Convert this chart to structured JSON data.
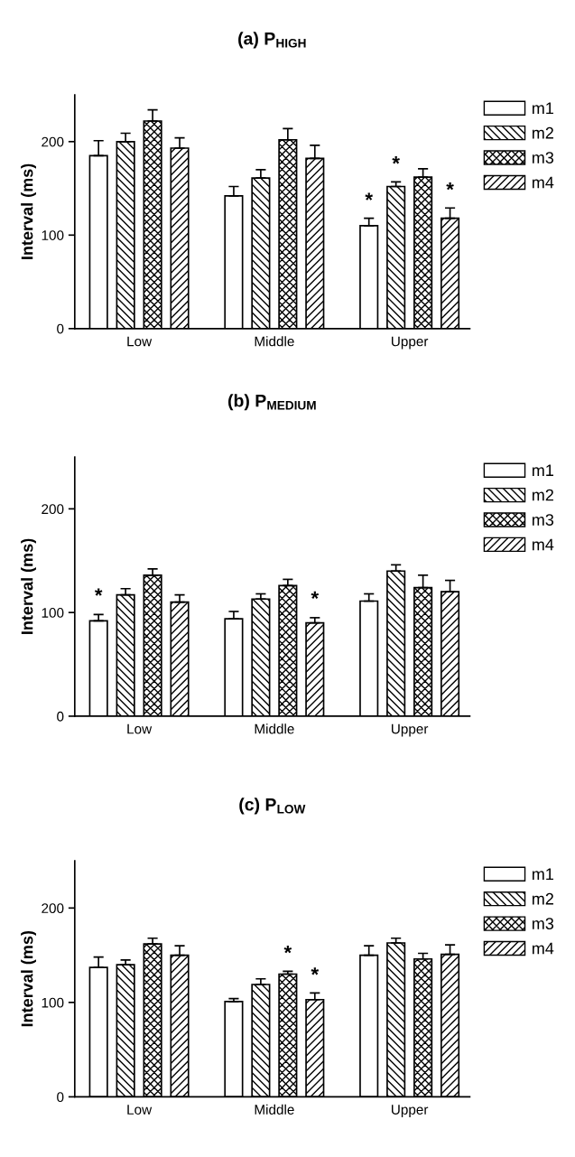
{
  "chart_data": [
    {
      "type": "bar",
      "title": "(a) P$_{HIGH}$",
      "ylabel": "Interval (ms)",
      "categories": [
        "Low",
        "Middle",
        "Upper"
      ],
      "ylim": [
        0,
        250
      ],
      "yticks": [
        0,
        100,
        200
      ],
      "legend": "top right",
      "grid": false,
      "series": [
        {
          "name": "m1",
          "values": [
            185,
            142,
            110
          ],
          "errors": [
            16,
            10,
            8
          ],
          "value_labels": [
            null,
            null,
            "*"
          ]
        },
        {
          "name": "m2",
          "values": [
            200,
            161,
            152
          ],
          "errors": [
            9,
            9,
            5
          ],
          "value_labels": [
            null,
            null,
            "*"
          ]
        },
        {
          "name": "m3",
          "values": [
            222,
            202,
            162
          ],
          "errors": [
            12,
            12,
            9
          ],
          "value_labels": [
            null,
            null,
            null
          ]
        },
        {
          "name": "m4",
          "values": [
            193,
            182,
            118
          ],
          "errors": [
            11,
            14,
            11
          ],
          "value_labels": [
            null,
            null,
            "*"
          ]
        }
      ]
    },
    {
      "type": "bar",
      "title": "(b) P$_{MEDIUM}$",
      "ylabel": "Interval (ms)",
      "categories": [
        "Low",
        "Middle",
        "Upper"
      ],
      "ylim": [
        0,
        250
      ],
      "yticks": [
        0,
        100,
        200
      ],
      "legend": "top right",
      "grid": false,
      "series": [
        {
          "name": "m1",
          "values": [
            92,
            94,
            111
          ],
          "errors": [
            6,
            7,
            7
          ],
          "value_labels": [
            "*",
            null,
            null
          ]
        },
        {
          "name": "m2",
          "values": [
            117,
            113,
            140
          ],
          "errors": [
            6,
            5,
            6
          ],
          "value_labels": [
            null,
            null,
            null
          ]
        },
        {
          "name": "m3",
          "values": [
            136,
            126,
            124
          ],
          "errors": [
            6,
            6,
            12
          ],
          "value_labels": [
            null,
            null,
            null
          ]
        },
        {
          "name": "m4",
          "values": [
            110,
            90,
            120
          ],
          "errors": [
            7,
            5,
            11
          ],
          "value_labels": [
            null,
            "*",
            null
          ]
        }
      ]
    },
    {
      "type": "bar",
      "title": "(c) P$_{LOW}$",
      "ylabel": "Interval (ms)",
      "categories": [
        "Low",
        "Middle",
        "Upper"
      ],
      "ylim": [
        0,
        250
      ],
      "yticks": [
        0,
        100,
        200
      ],
      "legend": "top right",
      "grid": false,
      "series": [
        {
          "name": "m1",
          "values": [
            137,
            101,
            150
          ],
          "errors": [
            11,
            3,
            10
          ],
          "value_labels": [
            null,
            null,
            null
          ]
        },
        {
          "name": "m2",
          "values": [
            140,
            119,
            163
          ],
          "errors": [
            5,
            6,
            5
          ],
          "value_labels": [
            null,
            null,
            null
          ]
        },
        {
          "name": "m3",
          "values": [
            162,
            130,
            146
          ],
          "errors": [
            6,
            3,
            6
          ],
          "value_labels": [
            null,
            "*",
            null
          ]
        },
        {
          "name": "m4",
          "values": [
            150,
            103,
            151
          ],
          "errors": [
            10,
            7,
            10
          ],
          "value_labels": [
            null,
            "*",
            null
          ]
        }
      ]
    }
  ]
}
